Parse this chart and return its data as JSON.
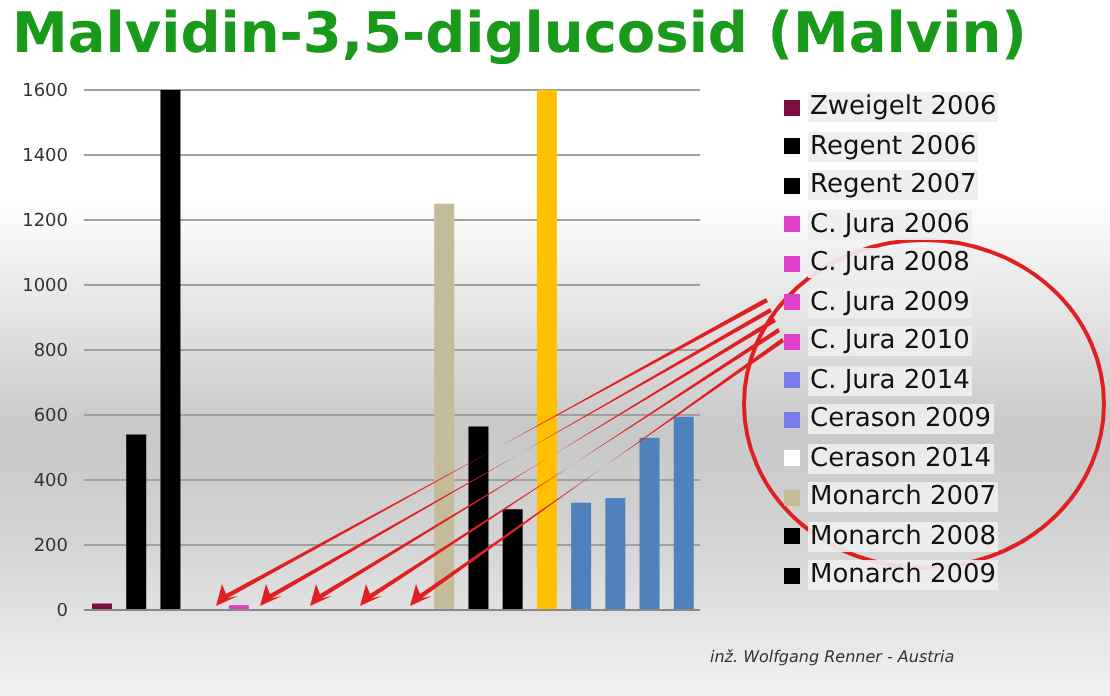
{
  "chart_data": {
    "type": "bar",
    "title": "Malvidin-3,5-diglucosid (Malvin)",
    "categories": [
      null,
      null,
      null,
      null,
      null,
      null,
      null,
      null,
      null,
      null,
      null,
      null,
      null,
      null,
      null,
      null,
      null,
      null
    ],
    "series": [
      {
        "name": "Zweigelt 2006",
        "color": "#7b1040",
        "values": [
          20,
          null,
          null,
          null,
          null,
          null,
          null,
          null,
          null,
          null,
          null,
          null,
          null,
          null,
          null,
          null,
          null,
          null
        ]
      },
      {
        "name": "Regent 2006",
        "color": "#000000",
        "values": [
          null,
          540,
          null,
          null,
          null,
          null,
          null,
          null,
          null,
          null,
          null,
          null,
          null,
          null,
          null,
          null,
          null,
          null
        ]
      },
      {
        "name": "Regent 2007",
        "color": "#000000",
        "values": [
          null,
          null,
          1600,
          null,
          null,
          null,
          null,
          null,
          null,
          null,
          null,
          null,
          null,
          null,
          null,
          null,
          null,
          null
        ]
      },
      {
        "name": "C. Jura 2006",
        "color": "#e040c8",
        "values": [
          null,
          null,
          null,
          0,
          null,
          null,
          null,
          null,
          null,
          null,
          null,
          null,
          null,
          null,
          null,
          null,
          null,
          null
        ]
      },
      {
        "name": "C. Jura 2008",
        "color": "#e040c8",
        "values": [
          null,
          null,
          null,
          null,
          15,
          null,
          null,
          null,
          null,
          null,
          null,
          null,
          null,
          null,
          null,
          null,
          null,
          null
        ]
      },
      {
        "name": "C. Jura 2009",
        "color": "#e040c8",
        "values": [
          null,
          null,
          null,
          null,
          null,
          0,
          null,
          null,
          null,
          null,
          null,
          null,
          null,
          null,
          null,
          null,
          null,
          null
        ]
      },
      {
        "name": "C. Jura 2010",
        "color": "#e040c8",
        "values": [
          null,
          null,
          null,
          null,
          null,
          null,
          0,
          null,
          null,
          null,
          null,
          null,
          null,
          null,
          null,
          null,
          null,
          null
        ]
      },
      {
        "name": "C. Jura 2014",
        "color": "#7a7ae8",
        "values": [
          null,
          null,
          null,
          null,
          null,
          null,
          null,
          0,
          null,
          null,
          null,
          null,
          null,
          null,
          null,
          null,
          null,
          null
        ]
      },
      {
        "name": "Cerason 2009",
        "color": "#7a7ae8",
        "values": [
          null,
          null,
          null,
          null,
          null,
          null,
          null,
          null,
          0,
          null,
          null,
          null,
          null,
          null,
          null,
          null,
          null,
          null
        ]
      },
      {
        "name": "Cerason 2014",
        "color": "#ffffff",
        "values": [
          null,
          null,
          null,
          null,
          null,
          null,
          null,
          null,
          null,
          0,
          null,
          null,
          null,
          null,
          null,
          null,
          null,
          null
        ]
      },
      {
        "name": "Monarch 2007",
        "color": "#c4bc98",
        "values": [
          null,
          null,
          null,
          null,
          null,
          null,
          null,
          null,
          null,
          null,
          1250,
          null,
          null,
          null,
          null,
          null,
          null,
          null
        ]
      },
      {
        "name": "Monarch 2008",
        "color": "#000000",
        "values": [
          null,
          null,
          null,
          null,
          null,
          null,
          null,
          null,
          null,
          null,
          null,
          565,
          null,
          null,
          null,
          null,
          null,
          null
        ]
      },
      {
        "name": "Monarch 2009",
        "color": "#000000",
        "values": [
          null,
          null,
          null,
          null,
          null,
          null,
          null,
          null,
          null,
          null,
          null,
          null,
          310,
          null,
          null,
          null,
          null,
          null
        ]
      },
      {
        "color": "#ffc000",
        "values": [
          null,
          null,
          null,
          null,
          null,
          null,
          null,
          null,
          null,
          null,
          null,
          null,
          null,
          1600,
          null,
          null,
          null,
          null
        ]
      },
      {
        "color": "#4f81bd",
        "values": [
          null,
          null,
          null,
          null,
          null,
          null,
          null,
          null,
          null,
          null,
          null,
          null,
          null,
          null,
          330,
          null,
          null,
          null
        ]
      },
      {
        "color": "#4f81bd",
        "values": [
          null,
          null,
          null,
          null,
          null,
          null,
          null,
          null,
          null,
          null,
          null,
          null,
          null,
          null,
          null,
          345,
          null,
          null
        ]
      },
      {
        "color": "#4f81bd",
        "values": [
          null,
          null,
          null,
          null,
          null,
          null,
          null,
          null,
          null,
          null,
          null,
          null,
          null,
          null,
          null,
          null,
          530,
          null
        ]
      },
      {
        "color": "#4f81bd",
        "values": [
          null,
          null,
          null,
          null,
          null,
          null,
          null,
          null,
          null,
          null,
          null,
          null,
          null,
          null,
          null,
          null,
          null,
          595
        ]
      }
    ],
    "ylim": [
      0,
      1600
    ],
    "yticks": [
      0,
      200,
      400,
      600,
      800,
      1000,
      1200,
      1400,
      1600
    ],
    "grid": "y",
    "legend": "right",
    "annotations": [
      "inž. Wolfgang Renner - Austria"
    ]
  }
}
